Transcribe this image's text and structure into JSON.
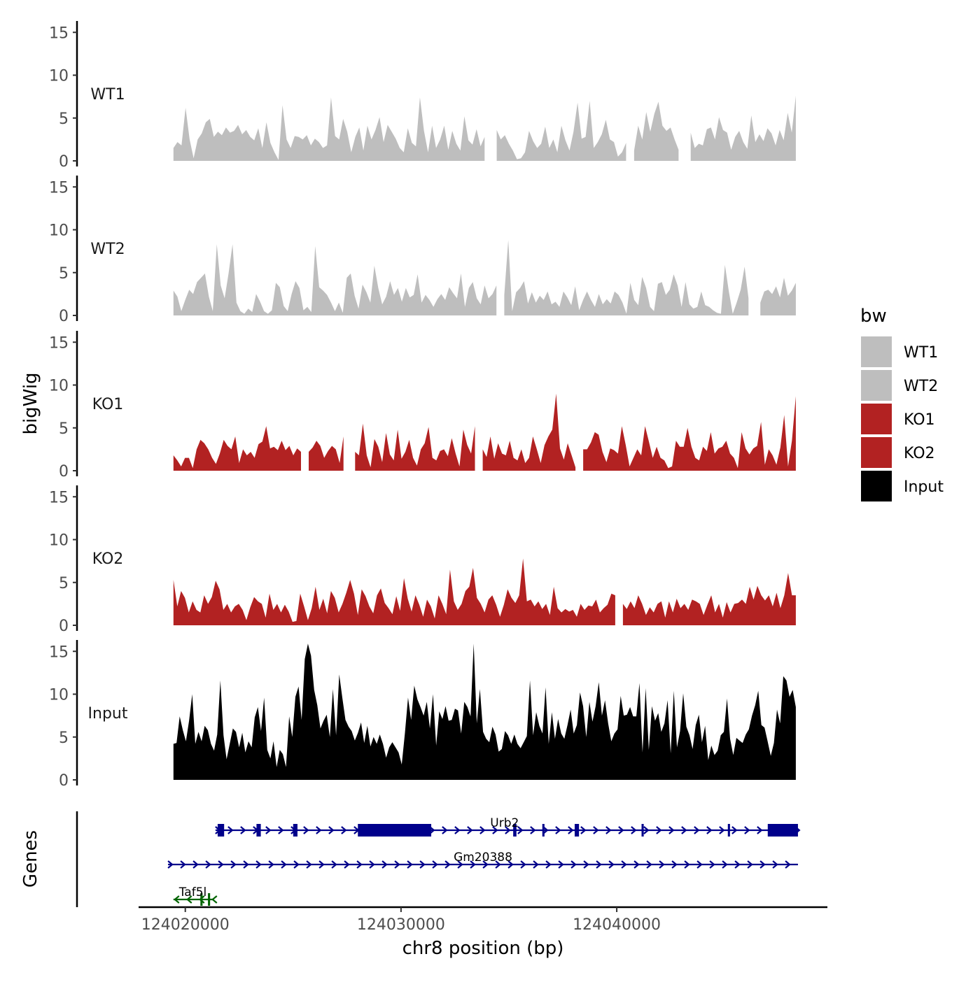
{
  "chart_data": {
    "type": "area",
    "title": "",
    "ylabel_tracks": "bigWig",
    "ylabel_genes": "Genes",
    "xlabel": "chr8 position (bp)",
    "xlim": [
      124017900,
      124049700
    ],
    "x_ticks": [
      124020000,
      124030000,
      124040000
    ],
    "x_tick_labels": [
      "124020000",
      "124030000",
      "124040000"
    ],
    "y_range": [
      0,
      16
    ],
    "y_ticks": [
      0,
      5,
      10,
      15
    ],
    "y_tick_labels": [
      "0",
      "5",
      "10",
      "15"
    ],
    "data_start": 124019450,
    "data_end": 124048300,
    "legend": {
      "title": "bw",
      "position": "right",
      "entries": [
        {
          "label": "WT1",
          "color": "#bebebe"
        },
        {
          "label": "WT2",
          "color": "#bebebe"
        },
        {
          "label": "KO1",
          "color": "#b22222"
        },
        {
          "label": "KO2",
          "color": "#b22222"
        },
        {
          "label": "Input",
          "color": "#000000"
        }
      ]
    },
    "series": [
      {
        "name": "WT1",
        "color": "#bebebe",
        "gaps": [
          [
            124033950,
            124034250
          ],
          [
            124040450,
            124040700
          ],
          [
            124043050,
            124043250
          ]
        ],
        "values": [
          1.5,
          2.2,
          1.8,
          6.2,
          2.5,
          0.3,
          2.5,
          3.2,
          4.5,
          4.9,
          2.8,
          3.4,
          3.0,
          3.9,
          3.3,
          3.5,
          4.2,
          3.1,
          3.6,
          2.8,
          2.4,
          3.8,
          1.5,
          4.5,
          2.1,
          1.0,
          0.1,
          6.5,
          2.5,
          1.5,
          2.9,
          2.8,
          2.5,
          3.0,
          1.8,
          2.6,
          2.2,
          1.5,
          1.8,
          7.4,
          2.9,
          2.5,
          4.9,
          3.4,
          1.0,
          2.8,
          3.9,
          1.2,
          4.1,
          2.5,
          3.6,
          5.1,
          2.2,
          4.2,
          3.4,
          2.6,
          1.5,
          1.0,
          3.8,
          2.1,
          1.7,
          7.4,
          3.5,
          1.0,
          4.1,
          1.5,
          2.5,
          4.1,
          1.3,
          3.5,
          2.0,
          1.2,
          5.2,
          2.4,
          1.9,
          3.7,
          1.7,
          2.8,
          1.2,
          4.8,
          3.6,
          2.5,
          3.0,
          2.0,
          1.2,
          0.2,
          0.3,
          1.0,
          3.5,
          2.3,
          1.5,
          2.0,
          4.0,
          1.5,
          2.5,
          1.0,
          4.1,
          2.4,
          1.2,
          3.4,
          6.8,
          2.6,
          2.8,
          7.0,
          1.5,
          2.2,
          3.1,
          4.8,
          2.5,
          2.2,
          0.5,
          1.0,
          2.1,
          0.5,
          1.2,
          4.1,
          2.5,
          5.7,
          3.4,
          5.5,
          6.9,
          4.1,
          3.5,
          3.9,
          2.5,
          1.3,
          1.0,
          2.5,
          3.3,
          1.5,
          2.0,
          1.8,
          3.7,
          3.9,
          2.5,
          5.1,
          3.6,
          3.3,
          1.3,
          2.8,
          3.5,
          2.2,
          1.4,
          5.3,
          2.2,
          3.1,
          2.3,
          3.8,
          3.2,
          1.8,
          3.6,
          2.4,
          5.6,
          3.3,
          7.6
        ]
      },
      {
        "name": "WT2",
        "color": "#bebebe",
        "gaps": [
          [
            124034500,
            124034700
          ],
          [
            124046250,
            124046500
          ]
        ],
        "values": [
          2.9,
          2.2,
          0.5,
          1.8,
          3.0,
          2.5,
          3.9,
          4.4,
          4.9,
          2.2,
          0.5,
          8.3,
          3.5,
          2.0,
          4.9,
          8.3,
          1.5,
          0.5,
          0.2,
          0.8,
          0.4,
          2.5,
          1.6,
          0.5,
          0.2,
          0.6,
          3.8,
          3.3,
          1.1,
          0.5,
          2.5,
          4.0,
          3.2,
          0.6,
          1.0,
          0.4,
          8.1,
          3.3,
          2.9,
          2.4,
          1.5,
          0.5,
          1.5,
          0.3,
          4.4,
          4.9,
          2.3,
          0.8,
          3.6,
          2.7,
          1.5,
          5.8,
          3.2,
          1.3,
          2.2,
          4.0,
          2.4,
          3.2,
          1.6,
          3.2,
          2.1,
          2.4,
          4.8,
          1.5,
          2.4,
          1.8,
          1.0,
          1.9,
          2.5,
          1.8,
          3.3,
          2.6,
          2.0,
          4.9,
          1.0,
          3.2,
          3.9,
          2.0,
          1.3,
          3.5,
          2.0,
          2.5,
          3.5,
          1.8,
          2.4,
          8.8,
          0.5,
          2.7,
          3.2,
          4.0,
          1.4,
          2.7,
          1.5,
          2.3,
          1.8,
          2.8,
          1.3,
          1.6,
          1.0,
          2.8,
          2.1,
          1.2,
          3.4,
          0.6,
          1.8,
          2.8,
          1.8,
          1.0,
          2.5,
          1.3,
          1.9,
          1.4,
          2.8,
          2.4,
          1.5,
          0.2,
          3.8,
          1.8,
          1.2,
          4.5,
          3.2,
          1.0,
          0.5,
          3.7,
          3.9,
          2.4,
          3.0,
          4.8,
          3.5,
          1.0,
          3.9,
          1.3,
          0.8,
          1.0,
          2.8,
          1.2,
          1.0,
          0.6,
          0.3,
          0.2,
          5.9,
          2.8,
          0.2,
          1.5,
          3.0,
          5.7,
          2.0,
          0.5,
          2.0,
          1.5,
          2.8,
          3.0,
          2.5,
          3.4,
          2.1,
          4.4,
          2.3,
          2.9,
          3.8
        ]
      },
      {
        "name": "KO1",
        "color": "#b22222",
        "gaps": [
          [
            124025400,
            124025650
          ],
          [
            124027400,
            124027850
          ],
          [
            124033550,
            124033750
          ],
          [
            124038150,
            124038400
          ],
          [
            124049100,
            124049200
          ]
        ],
        "values": [
          1.8,
          1.2,
          0.5,
          1.5,
          1.5,
          0.3,
          2.5,
          3.6,
          3.2,
          2.5,
          1.5,
          0.8,
          2.0,
          3.6,
          2.9,
          2.5,
          4.0,
          0.9,
          2.5,
          1.8,
          2.2,
          1.5,
          3.1,
          3.4,
          5.2,
          2.6,
          2.8,
          2.4,
          3.5,
          2.4,
          2.9,
          1.8,
          2.6,
          2.2,
          4.2,
          2.2,
          2.7,
          3.5,
          2.9,
          1.5,
          2.3,
          2.9,
          2.5,
          0.9,
          4.0,
          2.8,
          3.6,
          2.2,
          1.8,
          5.5,
          1.8,
          0.4,
          3.7,
          2.8,
          1.0,
          4.4,
          1.9,
          1.2,
          4.8,
          1.4,
          2.2,
          3.6,
          1.5,
          0.6,
          2.5,
          3.2,
          5.1,
          1.5,
          1.2,
          2.3,
          2.5,
          1.7,
          3.8,
          2.0,
          0.5,
          4.8,
          3.0,
          2.0,
          5.2,
          3.5,
          2.5,
          1.6,
          4.0,
          1.4,
          3.2,
          2.0,
          1.8,
          3.5,
          1.5,
          1.2,
          2.5,
          0.9,
          1.5,
          4.0,
          2.5,
          0.9,
          3.0,
          4.0,
          4.8,
          9.0,
          2.6,
          1.3,
          3.2,
          1.8,
          0.4,
          1.3,
          2.5,
          2.5,
          3.3,
          4.5,
          4.2,
          2.2,
          1.0,
          2.6,
          2.4,
          2.0,
          5.2,
          3.0,
          0.5,
          1.5,
          2.5,
          1.8,
          5.2,
          3.4,
          1.5,
          2.8,
          1.5,
          1.2,
          0.3,
          0.5,
          3.5,
          2.8,
          2.8,
          5.0,
          2.8,
          1.5,
          1.2,
          2.8,
          2.3,
          4.5,
          2.0,
          2.6,
          2.8,
          3.5,
          2.0,
          1.5,
          0.3,
          4.5,
          2.6,
          1.9,
          2.6,
          2.9,
          5.7,
          0.7,
          2.5,
          1.8,
          0.7,
          2.7,
          6.5,
          0.5,
          3.5,
          8.7
        ]
      },
      {
        "name": "KO2",
        "color": "#b22222",
        "gaps": [
          [
            124040000,
            124040250
          ]
        ],
        "values": [
          5.3,
          2.2,
          4.0,
          3.2,
          1.5,
          2.8,
          1.8,
          1.5,
          3.5,
          2.5,
          3.3,
          5.2,
          4.2,
          1.8,
          2.5,
          1.5,
          2.2,
          2.5,
          1.8,
          0.6,
          2.1,
          3.3,
          2.8,
          2.5,
          0.9,
          3.7,
          1.8,
          2.5,
          1.5,
          2.4,
          1.6,
          0.4,
          0.5,
          3.7,
          2.2,
          0.6,
          2.0,
          4.5,
          1.8,
          3.1,
          1.4,
          4.0,
          3.2,
          1.5,
          2.5,
          3.8,
          5.3,
          3.7,
          1.2,
          4.2,
          3.4,
          2.2,
          1.4,
          3.5,
          4.3,
          2.6,
          2.0,
          1.3,
          3.4,
          1.7,
          5.5,
          3.1,
          1.6,
          3.5,
          2.4,
          1.0,
          3.0,
          2.2,
          0.8,
          3.5,
          2.5,
          1.3,
          6.5,
          2.8,
          1.8,
          2.5,
          4.0,
          4.5,
          6.7,
          3.2,
          2.5,
          1.5,
          3.0,
          3.5,
          2.4,
          1.0,
          2.4,
          4.2,
          3.2,
          2.6,
          3.5,
          7.8,
          2.8,
          3.0,
          2.2,
          2.8,
          1.9,
          2.5,
          1.2,
          4.5,
          2.0,
          1.5,
          1.9,
          1.6,
          1.8,
          1.0,
          2.5,
          1.8,
          2.3,
          2.2,
          3.0,
          1.5,
          2.0,
          2.4,
          3.7,
          3.5,
          4.8,
          2.5,
          1.9,
          2.8,
          2.0,
          3.5,
          2.5,
          1.2,
          2.1,
          1.5,
          2.5,
          2.8,
          0.9,
          2.8,
          1.5,
          3.1,
          2.0,
          2.5,
          1.8,
          3.0,
          2.8,
          2.5,
          1.2,
          2.4,
          3.5,
          1.5,
          2.5,
          0.9,
          2.7,
          1.5,
          2.5,
          2.6,
          3.0,
          2.5,
          4.5,
          3.0,
          4.6,
          3.5,
          2.9,
          3.5,
          2.2,
          3.8,
          2.0,
          3.5,
          6.1,
          3.5,
          3.5
        ]
      },
      {
        "name": "Input",
        "color": "#000000",
        "gaps": [],
        "values": [
          4.2,
          4.3,
          7.4,
          5.8,
          4.5,
          6.9,
          10.0,
          4.2,
          5.6,
          4.5,
          6.3,
          5.8,
          4.2,
          3.4,
          5.3,
          11.6,
          5.2,
          2.4,
          4.2,
          6.0,
          5.6,
          3.8,
          5.5,
          3.2,
          4.5,
          3.8,
          7.3,
          8.5,
          5.7,
          9.6,
          3.5,
          2.5,
          4.5,
          1.5,
          3.5,
          3.0,
          1.5,
          7.4,
          5.0,
          9.7,
          10.9,
          7.0,
          14.1,
          15.9,
          14.5,
          10.5,
          8.7,
          6.0,
          6.9,
          7.6,
          5.0,
          10.6,
          5.2,
          12.3,
          9.6,
          7.0,
          6.2,
          5.7,
          4.6,
          5.5,
          6.7,
          4.3,
          6.3,
          3.9,
          5.0,
          4.2,
          5.3,
          4.2,
          2.6,
          3.8,
          4.4,
          3.8,
          3.2,
          1.8,
          5.4,
          9.6,
          7.0,
          11.0,
          9.4,
          8.5,
          7.5,
          9.1,
          6.0,
          10.0,
          4.0,
          8.0,
          7.1,
          8.6,
          6.9,
          7.0,
          8.3,
          8.1,
          5.4,
          9.1,
          8.5,
          7.4,
          15.9,
          6.6,
          10.6,
          5.6,
          4.8,
          4.4,
          6.2,
          5.3,
          3.3,
          3.6,
          5.7,
          5.2,
          4.2,
          5.3,
          4.2,
          3.7,
          4.4,
          5.1,
          11.6,
          5.2,
          7.9,
          6.3,
          5.4,
          10.8,
          4.2,
          7.9,
          4.8,
          7.1,
          5.4,
          4.8,
          6.4,
          8.2,
          5.4,
          6.4,
          10.2,
          8.6,
          5.0,
          9.1,
          6.8,
          8.6,
          11.4,
          7.5,
          9.3,
          6.6,
          4.5,
          5.4,
          5.9,
          9.8,
          7.5,
          7.6,
          8.5,
          7.4,
          7.4,
          11.3,
          3.2,
          10.7,
          3.5,
          8.6,
          6.9,
          7.8,
          5.6,
          6.6,
          9.3,
          3.1,
          10.4,
          3.8,
          5.7,
          10.1,
          6.2,
          5.2,
          3.6,
          6.4,
          7.6,
          4.4,
          6.3,
          2.3,
          4.0,
          2.9,
          3.4,
          5.2,
          5.6,
          9.5,
          4.8,
          2.9,
          4.9,
          4.6,
          4.3,
          5.3,
          5.9,
          7.5,
          8.7,
          10.4,
          6.4,
          6.1,
          4.5,
          2.8,
          4.3,
          8.2,
          6.6,
          12.1,
          11.6,
          9.7,
          10.5,
          8.5
        ]
      }
    ],
    "genes": [
      {
        "name": "Urb2",
        "strand": "+",
        "color": "#00008b",
        "row": 1,
        "start": 124021400,
        "end": 124048400,
        "exons": [
          [
            124021500,
            124021800
          ],
          [
            124023300,
            124023500
          ],
          [
            124025000,
            124025200
          ],
          [
            124028000,
            124031400
          ],
          [
            124035200,
            124035350
          ],
          [
            124036550,
            124036650
          ],
          [
            124038050,
            124038250
          ],
          [
            124041150,
            124041250
          ],
          [
            124045150,
            124045250
          ],
          [
            124047000,
            124048400
          ]
        ]
      },
      {
        "name": "Gm20388",
        "strand": "+",
        "color": "#00008b",
        "row": 2,
        "start": 124019200,
        "end": 124048400,
        "exons": []
      },
      {
        "name": "Taf5l",
        "strand": "-",
        "color": "#006400",
        "row": 3,
        "start": 124019450,
        "end": 124021300,
        "exons": [
          [
            124020700,
            124020800
          ],
          [
            124021050,
            124021150
          ]
        ]
      }
    ]
  }
}
